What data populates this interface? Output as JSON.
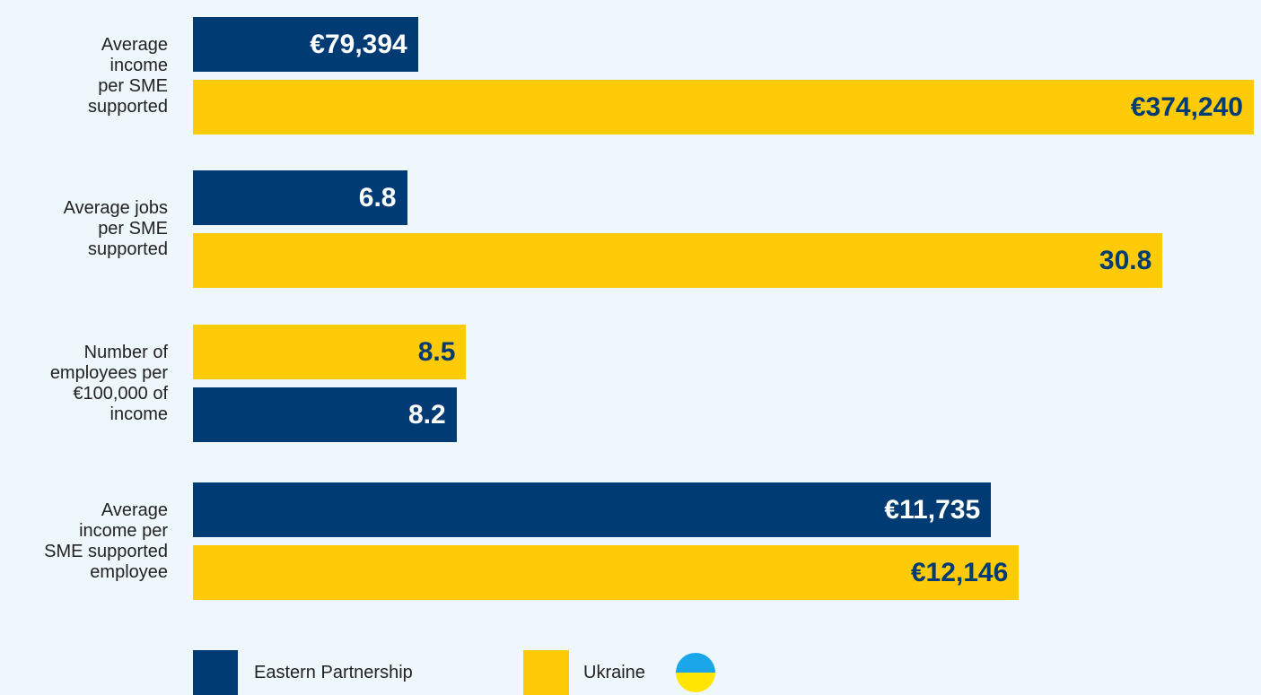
{
  "chart_data": [
    {
      "type": "hbar",
      "category": "Average\nincome\nper SME\nsupported",
      "xlim": [
        0,
        374240
      ],
      "series": [
        {
          "name": "Eastern Partnership",
          "color": "#003b73",
          "values": [
            79394
          ],
          "value_labels": [
            "€79,394"
          ]
        },
        {
          "name": "Ukraine",
          "color": "#ffcb08",
          "values": [
            374240
          ],
          "value_labels": [
            "€374,240"
          ]
        }
      ]
    },
    {
      "type": "hbar",
      "category": "Average jobs\nper SME\nsupported",
      "xlim": [
        0,
        33.7
      ],
      "series": [
        {
          "name": "Eastern Partnership",
          "color": "#003b73",
          "values": [
            6.8
          ]
        },
        {
          "name": "Ukraine",
          "color": "#ffcb08",
          "values": [
            30.8
          ]
        }
      ]
    },
    {
      "type": "hbar",
      "category": "Number of\nemployees per\n€100,000 of\nincome",
      "xlim": [
        0,
        33
      ],
      "series": [
        {
          "name": "Ukraine",
          "color": "#ffcb08",
          "values": [
            8.5
          ]
        },
        {
          "name": "Eastern Partnership",
          "color": "#003b73",
          "values": [
            8.2
          ]
        }
      ]
    },
    {
      "type": "hbar",
      "category": "Average\nincome per\nSME supported\nemployee",
      "xlim": [
        0,
        15600
      ],
      "series": [
        {
          "name": "Eastern Partnership",
          "color": "#003b73",
          "values": [
            11735
          ],
          "value_labels": [
            "€11,735"
          ]
        },
        {
          "name": "Ukraine",
          "color": "#ffcb08",
          "values": [
            12146
          ],
          "value_labels": [
            "€12,146"
          ]
        }
      ]
    }
  ]
}
